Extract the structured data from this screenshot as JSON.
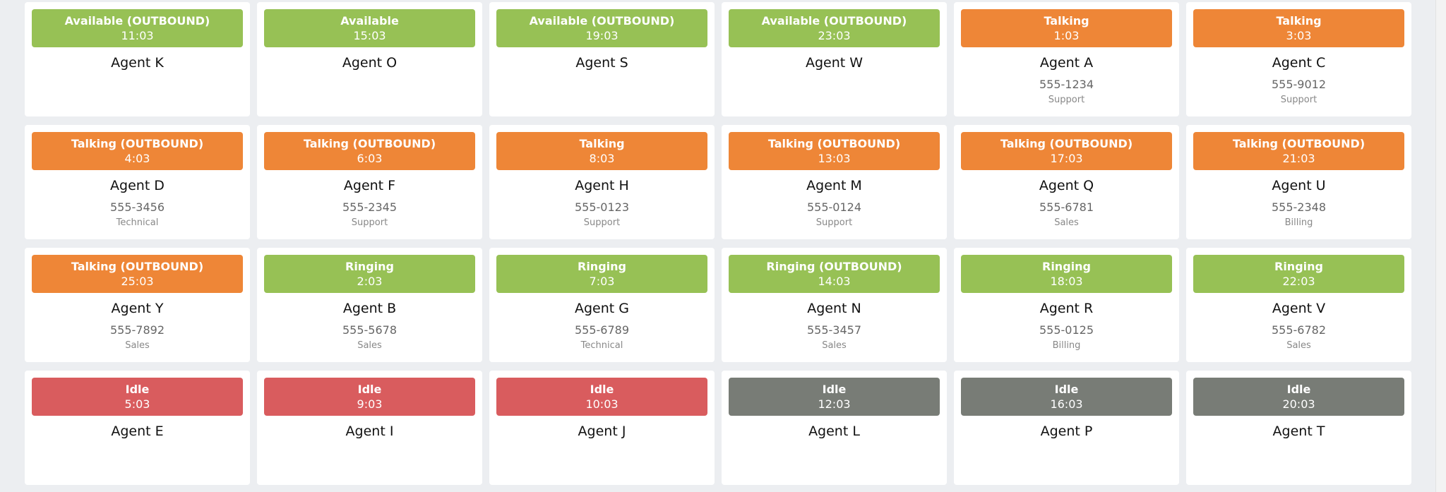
{
  "agents": [
    {
      "status": "Available (OUTBOUND)",
      "time": "11:03",
      "name": "Agent K",
      "color": "#97c155"
    },
    {
      "status": "Available",
      "time": "15:03",
      "name": "Agent O",
      "color": "#97c155"
    },
    {
      "status": "Available (OUTBOUND)",
      "time": "19:03",
      "name": "Agent S",
      "color": "#97c155"
    },
    {
      "status": "Available (OUTBOUND)",
      "time": "23:03",
      "name": "Agent W",
      "color": "#97c155"
    },
    {
      "status": "Talking",
      "time": "1:03",
      "name": "Agent A",
      "phone": "555-1234",
      "dept": "Support",
      "color": "#ee8637"
    },
    {
      "status": "Talking",
      "time": "3:03",
      "name": "Agent C",
      "phone": "555-9012",
      "dept": "Support",
      "color": "#ee8637"
    },
    {
      "status": "Talking (OUTBOUND)",
      "time": "4:03",
      "name": "Agent D",
      "phone": "555-3456",
      "dept": "Technical",
      "color": "#ee8637"
    },
    {
      "status": "Talking (OUTBOUND)",
      "time": "6:03",
      "name": "Agent F",
      "phone": "555-2345",
      "dept": "Support",
      "color": "#ee8637"
    },
    {
      "status": "Talking",
      "time": "8:03",
      "name": "Agent H",
      "phone": "555-0123",
      "dept": "Support",
      "color": "#ee8637"
    },
    {
      "status": "Talking (OUTBOUND)",
      "time": "13:03",
      "name": "Agent M",
      "phone": "555-0124",
      "dept": "Support",
      "color": "#ee8637"
    },
    {
      "status": "Talking (OUTBOUND)",
      "time": "17:03",
      "name": "Agent Q",
      "phone": "555-6781",
      "dept": "Sales",
      "color": "#ee8637"
    },
    {
      "status": "Talking (OUTBOUND)",
      "time": "21:03",
      "name": "Agent U",
      "phone": "555-2348",
      "dept": "Billing",
      "color": "#ee8637"
    },
    {
      "status": "Talking (OUTBOUND)",
      "time": "25:03",
      "name": "Agent Y",
      "phone": "555-7892",
      "dept": "Sales",
      "color": "#ee8637"
    },
    {
      "status": "Ringing",
      "time": "2:03",
      "name": "Agent B",
      "phone": "555-5678",
      "dept": "Sales",
      "color": "#97c155"
    },
    {
      "status": "Ringing",
      "time": "7:03",
      "name": "Agent G",
      "phone": "555-6789",
      "dept": "Technical",
      "color": "#97c155"
    },
    {
      "status": "Ringing (OUTBOUND)",
      "time": "14:03",
      "name": "Agent N",
      "phone": "555-3457",
      "dept": "Sales",
      "color": "#97c155"
    },
    {
      "status": "Ringing",
      "time": "18:03",
      "name": "Agent R",
      "phone": "555-0125",
      "dept": "Billing",
      "color": "#97c155"
    },
    {
      "status": "Ringing",
      "time": "22:03",
      "name": "Agent V",
      "phone": "555-6782",
      "dept": "Sales",
      "color": "#97c155"
    },
    {
      "status": "Idle",
      "time": "5:03",
      "name": "Agent E",
      "color": "#d95c5e"
    },
    {
      "status": "Idle",
      "time": "9:03",
      "name": "Agent I",
      "color": "#d95c5e"
    },
    {
      "status": "Idle",
      "time": "10:03",
      "name": "Agent J",
      "color": "#d95c5e"
    },
    {
      "status": "Idle",
      "time": "12:03",
      "name": "Agent L",
      "color": "#787c76"
    },
    {
      "status": "Idle",
      "time": "16:03",
      "name": "Agent P",
      "color": "#787c76"
    },
    {
      "status": "Idle",
      "time": "20:03",
      "name": "Agent T",
      "color": "#787c76"
    }
  ]
}
